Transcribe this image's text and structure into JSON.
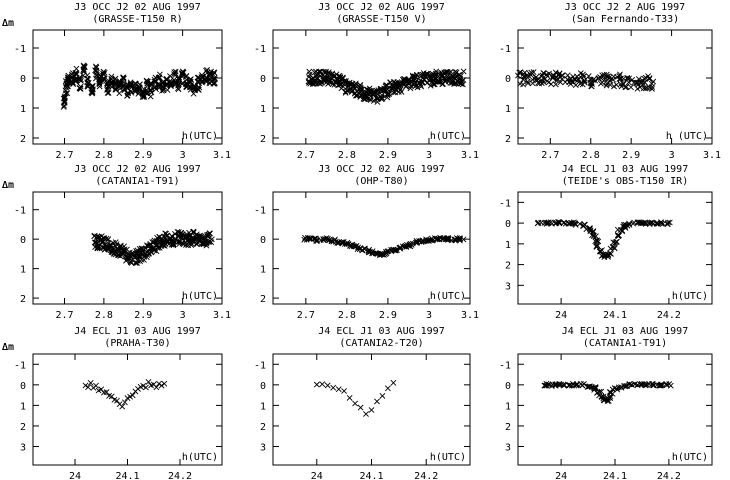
{
  "chart_data": [
    {
      "type": "scatter",
      "title": "J3 OCC J2 02 AUG 1997",
      "subtitle": "(GRASSE-T150 R)",
      "ylabel": "Δm",
      "xlabel": "h(UTC)",
      "xlim": [
        2.62,
        3.1
      ],
      "ylim": [
        2.2,
        -1.6
      ],
      "xticks": [
        "2.7",
        "2.8",
        "2.9",
        "3",
        "3.1"
      ],
      "yticks": [
        "-1",
        "0",
        "1",
        "2"
      ],
      "style": "dense",
      "series": [
        {
          "x": [
            2.7,
            2.705,
            2.71,
            2.72,
            2.73,
            2.74,
            2.75,
            2.76,
            2.77,
            2.78,
            2.79,
            2.8,
            2.81,
            2.82,
            2.83,
            2.84,
            2.85,
            2.86,
            2.87,
            2.88,
            2.89,
            2.9,
            2.91,
            2.92,
            2.93,
            2.94,
            2.95,
            2.96,
            2.97,
            2.98,
            2.99,
            3.0,
            3.01,
            3.02,
            3.03,
            3.04,
            3.05,
            3.06,
            3.07,
            3.08
          ],
          "y": [
            0.8,
            0.3,
            0.1,
            0.0,
            -0.1,
            0.2,
            -0.2,
            0.1,
            0.3,
            -0.2,
            0.1,
            0.0,
            0.3,
            0.1,
            0.2,
            0.3,
            0.2,
            0.4,
            0.3,
            0.3,
            0.4,
            0.5,
            0.3,
            0.4,
            0.2,
            0.1,
            0.3,
            0.2,
            0.1,
            0.0,
            0.2,
            0.0,
            0.1,
            0.2,
            0.4,
            0.2,
            0.1,
            -0.1,
            0.0,
            0.0
          ]
        }
      ]
    },
    {
      "type": "scatter",
      "title": "J3 OCC J2 02 AUG 1997",
      "subtitle": "(GRASSE-T150 V)",
      "ylabel": "Δm",
      "xlabel": "h(UTC)",
      "xlim": [
        2.62,
        3.1
      ],
      "ylim": [
        2.2,
        -1.6
      ],
      "xticks": [
        "2.7",
        "2.8",
        "2.9",
        "3",
        "3.1"
      ],
      "yticks": [
        "-1",
        "0",
        "1",
        "2"
      ],
      "style": "dense",
      "series": [
        {
          "x": [
            2.71,
            2.72,
            2.73,
            2.74,
            2.75,
            2.76,
            2.77,
            2.78,
            2.79,
            2.8,
            2.81,
            2.82,
            2.83,
            2.84,
            2.85,
            2.86,
            2.87,
            2.88,
            2.89,
            2.9,
            2.91,
            2.92,
            2.93,
            2.94,
            2.95,
            2.96,
            2.97,
            2.98,
            2.99,
            3.0,
            3.01,
            3.02,
            3.03,
            3.04,
            3.05,
            3.06,
            3.07,
            3.08
          ],
          "y": [
            0.0,
            0.0,
            0.0,
            0.0,
            0.0,
            0.0,
            0.05,
            0.1,
            0.2,
            0.3,
            0.35,
            0.4,
            0.45,
            0.5,
            0.55,
            0.55,
            0.6,
            0.55,
            0.5,
            0.45,
            0.35,
            0.3,
            0.25,
            0.2,
            0.15,
            0.1,
            0.1,
            0.1,
            0.05,
            0.05,
            0.05,
            0.0,
            0.0,
            0.0,
            0.0,
            0.0,
            0.0,
            0.0
          ]
        }
      ]
    },
    {
      "type": "scatter",
      "title": "J3 OCC J2 2 AUG 1997",
      "subtitle": "(San Fernando-T33)",
      "ylabel": "Δm",
      "xlabel": "h (UTC)",
      "xlim": [
        2.62,
        3.1
      ],
      "ylim": [
        2.2,
        -1.6
      ],
      "xticks": [
        "2.7",
        "2.8",
        "2.9",
        "3",
        "3.1"
      ],
      "yticks": [
        "-1",
        "0",
        "1",
        "2"
      ],
      "style": "dense",
      "series": [
        {
          "x": [
            2.63,
            2.65,
            2.67,
            2.69,
            2.71,
            2.73,
            2.75,
            2.77,
            2.79,
            2.81,
            2.83,
            2.85,
            2.87,
            2.89,
            2.91,
            2.93,
            2.945
          ],
          "y": [
            0.0,
            0.0,
            0.0,
            0.05,
            0.0,
            0.05,
            0.0,
            0.05,
            0.1,
            0.1,
            0.1,
            0.15,
            0.1,
            0.15,
            0.15,
            0.2,
            0.15
          ]
        }
      ]
    },
    {
      "type": "scatter",
      "title": "J3 OCC J2 02 AUG 1997",
      "subtitle": "(CATANIA1-T91)",
      "ylabel": "Δm",
      "xlabel": "h(UTC)",
      "xlim": [
        2.62,
        3.1
      ],
      "ylim": [
        2.2,
        -1.6
      ],
      "xticks": [
        "2.7",
        "2.8",
        "2.9",
        "3",
        "3.1"
      ],
      "yticks": [
        "-1",
        "0",
        "1",
        "2"
      ],
      "style": "dense",
      "series": [
        {
          "x": [
            2.78,
            2.79,
            2.8,
            2.81,
            2.82,
            2.83,
            2.84,
            2.85,
            2.86,
            2.87,
            2.88,
            2.89,
            2.9,
            2.91,
            2.92,
            2.93,
            2.94,
            2.95,
            2.96,
            2.97,
            2.98,
            2.99,
            3.0,
            3.01,
            3.02,
            3.03,
            3.04,
            3.05,
            3.06,
            3.07
          ],
          "y": [
            0.1,
            0.1,
            0.15,
            0.2,
            0.25,
            0.3,
            0.35,
            0.45,
            0.55,
            0.6,
            0.6,
            0.55,
            0.5,
            0.4,
            0.3,
            0.2,
            0.1,
            0.05,
            0.0,
            0.0,
            0.0,
            -0.05,
            0.0,
            0.0,
            0.0,
            -0.05,
            0.0,
            0.0,
            0.0,
            0.0
          ]
        }
      ]
    },
    {
      "type": "scatter",
      "title": "J3 OCC J2 02 AUG 1997",
      "subtitle": "(OHP-T80)",
      "ylabel": "Δm",
      "xlabel": "h(UTC)",
      "xlim": [
        2.62,
        3.1
      ],
      "ylim": [
        2.2,
        -1.6
      ],
      "xticks": [
        "2.7",
        "2.8",
        "2.9",
        "3",
        "3.1"
      ],
      "yticks": [
        "-1",
        "0",
        "1",
        "2"
      ],
      "style": "medium",
      "series": [
        {
          "x": [
            2.7,
            2.71,
            2.72,
            2.73,
            2.74,
            2.75,
            2.76,
            2.77,
            2.78,
            2.79,
            2.8,
            2.81,
            2.82,
            2.83,
            2.84,
            2.85,
            2.86,
            2.87,
            2.88,
            2.89,
            2.9,
            2.91,
            2.92,
            2.93,
            2.94,
            2.95,
            2.96,
            2.97,
            2.98,
            2.99,
            3.0,
            3.01,
            3.02,
            3.03,
            3.04,
            3.05,
            3.06,
            3.07,
            3.08
          ],
          "y": [
            0.0,
            0.0,
            0.0,
            0.05,
            0.0,
            0.0,
            0.05,
            0.05,
            0.1,
            0.1,
            0.15,
            0.2,
            0.25,
            0.3,
            0.35,
            0.4,
            0.45,
            0.45,
            0.5,
            0.5,
            0.45,
            0.4,
            0.35,
            0.3,
            0.25,
            0.2,
            0.15,
            0.1,
            0.1,
            0.05,
            0.05,
            0.0,
            0.0,
            0.0,
            0.0,
            0.0,
            0.0,
            0.0,
            0.0
          ]
        }
      ]
    },
    {
      "type": "scatter",
      "title": "J4 ECL J1 03 AUG 1997",
      "subtitle": "(TEIDE's OBS-T150 IR)",
      "ylabel": "Δm",
      "xlabel": "h(UTC)",
      "xlim": [
        23.92,
        24.28
      ],
      "ylim": [
        3.9,
        -1.5
      ],
      "xticks": [
        "24",
        "24.1",
        "24.2"
      ],
      "yticks": [
        "-1",
        "0",
        "1",
        "2",
        "3"
      ],
      "style": "medium",
      "series": [
        {
          "x": [
            23.96,
            23.97,
            23.98,
            23.99,
            24.0,
            24.01,
            24.02,
            24.03,
            24.04,
            24.05,
            24.055,
            24.06,
            24.065,
            24.07,
            24.075,
            24.08,
            24.085,
            24.09,
            24.095,
            24.1,
            24.105,
            24.11,
            24.115,
            24.12,
            24.13,
            24.14,
            24.15,
            24.16,
            24.17,
            24.18,
            24.19,
            24.2
          ],
          "y": [
            0.0,
            0.0,
            0.0,
            0.0,
            0.0,
            0.0,
            0.0,
            0.05,
            0.1,
            0.25,
            0.4,
            0.6,
            0.85,
            1.1,
            1.35,
            1.55,
            1.6,
            1.5,
            1.2,
            0.9,
            0.6,
            0.35,
            0.2,
            0.1,
            0.05,
            0.0,
            0.0,
            0.0,
            0.0,
            0.0,
            0.0,
            0.0
          ]
        }
      ]
    },
    {
      "type": "scatter",
      "title": "J4 ECL J1 03 AUG 1997",
      "subtitle": "(PRAHA-T30)",
      "ylabel": "Δm",
      "xlabel": "h(UTC)",
      "xlim": [
        23.92,
        24.28
      ],
      "ylim": [
        3.9,
        -1.5
      ],
      "xticks": [
        "24",
        "24.1",
        "24.2"
      ],
      "yticks": [
        "-1",
        "0",
        "1",
        "2",
        "3"
      ],
      "style": "sparse",
      "series": [
        {
          "x": [
            24.02,
            24.025,
            24.03,
            24.035,
            24.04,
            24.045,
            24.05,
            24.055,
            24.06,
            24.065,
            24.07,
            24.075,
            24.08,
            24.085,
            24.09,
            24.095,
            24.1,
            24.105,
            24.11,
            24.115,
            24.12,
            24.125,
            24.13,
            24.135,
            24.14,
            24.145,
            24.15,
            24.155,
            24.16,
            24.165,
            24.17
          ],
          "y": [
            0.0,
            0.1,
            -0.05,
            0.15,
            0.1,
            0.25,
            0.2,
            0.35,
            0.4,
            0.5,
            0.6,
            0.7,
            0.8,
            0.9,
            1.0,
            0.85,
            0.7,
            0.6,
            0.45,
            0.35,
            0.25,
            0.15,
            0.0,
            0.1,
            -0.1,
            0.05,
            -0.05,
            0.1,
            0.0,
            0.05,
            0.0
          ]
        }
      ]
    },
    {
      "type": "scatter",
      "title": "J4 ECL J1 03 AUG 1997",
      "subtitle": "(CATANIA2-T20)",
      "ylabel": "Δm",
      "xlabel": "h(UTC)",
      "xlim": [
        23.92,
        24.28
      ],
      "ylim": [
        3.9,
        -1.5
      ],
      "xticks": [
        "24",
        "24.1",
        "24.2"
      ],
      "yticks": [
        "-1",
        "0",
        "1",
        "2",
        "3"
      ],
      "style": "sparse",
      "series": [
        {
          "x": [
            24.0,
            24.01,
            24.02,
            24.03,
            24.04,
            24.05,
            24.06,
            24.07,
            24.08,
            24.09,
            24.1,
            24.11,
            24.12,
            24.13,
            24.14
          ],
          "y": [
            0.0,
            0.0,
            0.0,
            0.1,
            0.2,
            0.35,
            0.6,
            0.85,
            1.1,
            1.4,
            1.2,
            0.8,
            0.5,
            0.2,
            -0.1
          ]
        }
      ]
    },
    {
      "type": "scatter",
      "title": "J4 ECL J1 03 AUG 1997",
      "subtitle": "(CATANIA1-T91)",
      "ylabel": "Δm",
      "xlabel": "h(UTC)",
      "xlim": [
        23.92,
        24.28
      ],
      "ylim": [
        3.9,
        -1.5
      ],
      "xticks": [
        "24",
        "24.1",
        "24.2"
      ],
      "yticks": [
        "-1",
        "0",
        "1",
        "2",
        "3"
      ],
      "style": "medium",
      "series": [
        {
          "x": [
            23.97,
            23.98,
            23.99,
            24.0,
            24.01,
            24.02,
            24.03,
            24.04,
            24.05,
            24.06,
            24.065,
            24.07,
            24.075,
            24.08,
            24.085,
            24.09,
            24.095,
            24.1,
            24.11,
            24.12,
            24.13,
            24.14,
            24.15,
            24.16,
            24.17,
            24.18,
            24.19,
            24.2
          ],
          "y": [
            0.0,
            0.0,
            0.0,
            0.0,
            0.0,
            0.0,
            0.0,
            0.0,
            0.05,
            0.1,
            0.2,
            0.35,
            0.55,
            0.7,
            0.75,
            0.6,
            0.4,
            0.2,
            0.1,
            0.05,
            0.0,
            0.0,
            0.0,
            0.0,
            0.0,
            0.0,
            0.0,
            0.0
          ]
        }
      ]
    }
  ]
}
